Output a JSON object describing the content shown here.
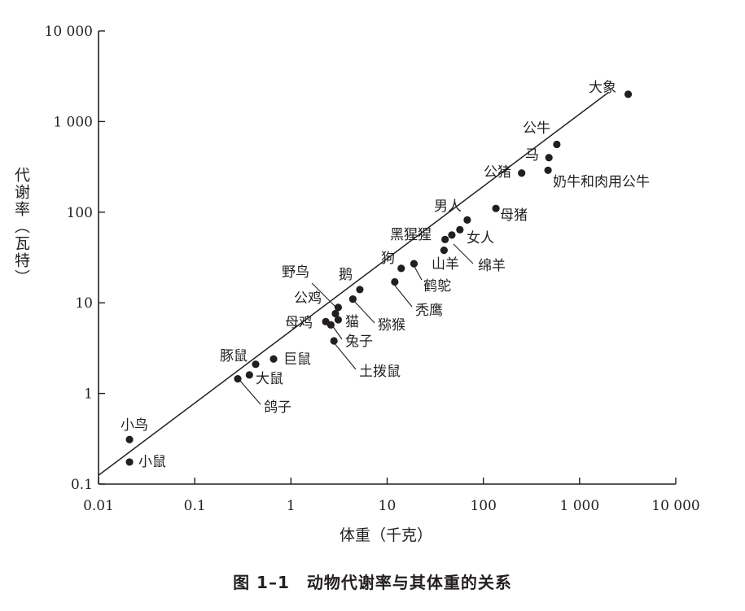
{
  "chart_data": {
    "type": "scatter",
    "xscale": "log",
    "yscale": "log",
    "xlim": [
      0.01,
      10000
    ],
    "ylim": [
      0.1,
      10000
    ],
    "xticks": [
      0.01,
      0.1,
      1,
      10,
      100,
      1000,
      10000
    ],
    "xtick_labels": [
      "0.01",
      "0.1",
      "1",
      "10",
      "100",
      "1 000",
      "10 000"
    ],
    "yticks": [
      0.1,
      1,
      10,
      100,
      1000,
      10000
    ],
    "ytick_labels": [
      "0.1",
      "1",
      "10",
      "100",
      "1 000",
      "10 000"
    ],
    "xlabel": "体重（千克）",
    "ylabel": "代谢率（瓦特）",
    "grid": false,
    "fit_line": {
      "x": [
        0.01,
        2000
      ],
      "y": [
        0.125,
        2100
      ]
    },
    "points": [
      {
        "label": "大象",
        "x": 3200,
        "y": 2000
      },
      {
        "label": "公牛",
        "x": 580,
        "y": 560
      },
      {
        "label": "马",
        "x": 480,
        "y": 400
      },
      {
        "label": "奶牛和肉用公牛",
        "x": 470,
        "y": 290
      },
      {
        "label": "公猪",
        "x": 250,
        "y": 270
      },
      {
        "label": "母猪",
        "x": 135,
        "y": 110
      },
      {
        "label": "男人",
        "x": 68,
        "y": 82
      },
      {
        "label": "女人",
        "x": 57,
        "y": 64
      },
      {
        "label": "黑猩猩",
        "x": 40,
        "y": 50
      },
      {
        "label": "绵羊",
        "x": 47,
        "y": 56
      },
      {
        "label": "山羊",
        "x": 39,
        "y": 38
      },
      {
        "label": "狗",
        "x": 14,
        "y": 24
      },
      {
        "label": "鹤鸵",
        "x": 19,
        "y": 27
      },
      {
        "label": "秃鹰",
        "x": 12,
        "y": 17
      },
      {
        "label": "鹅",
        "x": 5.2,
        "y": 14
      },
      {
        "label": "猕猴",
        "x": 4.4,
        "y": 11
      },
      {
        "label": "野鸟",
        "x": 3.1,
        "y": 8.9
      },
      {
        "label": "公鸡",
        "x": 2.9,
        "y": 7.6
      },
      {
        "label": "猫",
        "x": 3.1,
        "y": 6.5
      },
      {
        "label": "母鸡",
        "x": 2.3,
        "y": 6.2
      },
      {
        "label": "兔子",
        "x": 2.6,
        "y": 5.7
      },
      {
        "label": "土拨鼠",
        "x": 2.8,
        "y": 3.8
      },
      {
        "label": "巨鼠",
        "x": 0.66,
        "y": 2.4
      },
      {
        "label": "豚鼠",
        "x": 0.43,
        "y": 2.1
      },
      {
        "label": "大鼠",
        "x": 0.37,
        "y": 1.6
      },
      {
        "label": "鸽子",
        "x": 0.28,
        "y": 1.45
      },
      {
        "label": "小鸟",
        "x": 0.021,
        "y": 0.31
      },
      {
        "label": "小鼠",
        "x": 0.021,
        "y": 0.175
      }
    ]
  },
  "caption": "图 1–1　动物代谢率与其体重的关系"
}
